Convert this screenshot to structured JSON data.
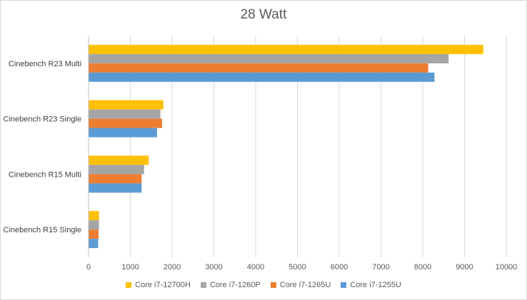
{
  "chart_data": {
    "type": "bar",
    "orientation": "horizontal",
    "title": "28 Watt",
    "categories": [
      "Cinebench R23 Multi",
      "Cinebench R23 Single",
      "Cinebench R15 Multi",
      "Cinebench R15 Single"
    ],
    "series": [
      {
        "name": "Core i7-12700H",
        "color": "#ffc000",
        "values": [
          9450,
          1790,
          1440,
          250
        ]
      },
      {
        "name": "Core i7-1260P",
        "color": "#a5a5a5",
        "values": [
          8620,
          1720,
          1330,
          250
        ]
      },
      {
        "name": "Core i7-1265U",
        "color": "#ed7d31",
        "values": [
          8130,
          1760,
          1270,
          240
        ]
      },
      {
        "name": "Core i7-1255U",
        "color": "#5b9bd5",
        "values": [
          8280,
          1640,
          1270,
          230
        ]
      }
    ],
    "xlim": [
      0,
      10000
    ],
    "xticks": [
      "0",
      "1000",
      "2000",
      "3000",
      "4000",
      "5000",
      "6000",
      "7000",
      "8000",
      "9000",
      "10000"
    ],
    "grid": true,
    "legend_position": "bottom"
  }
}
